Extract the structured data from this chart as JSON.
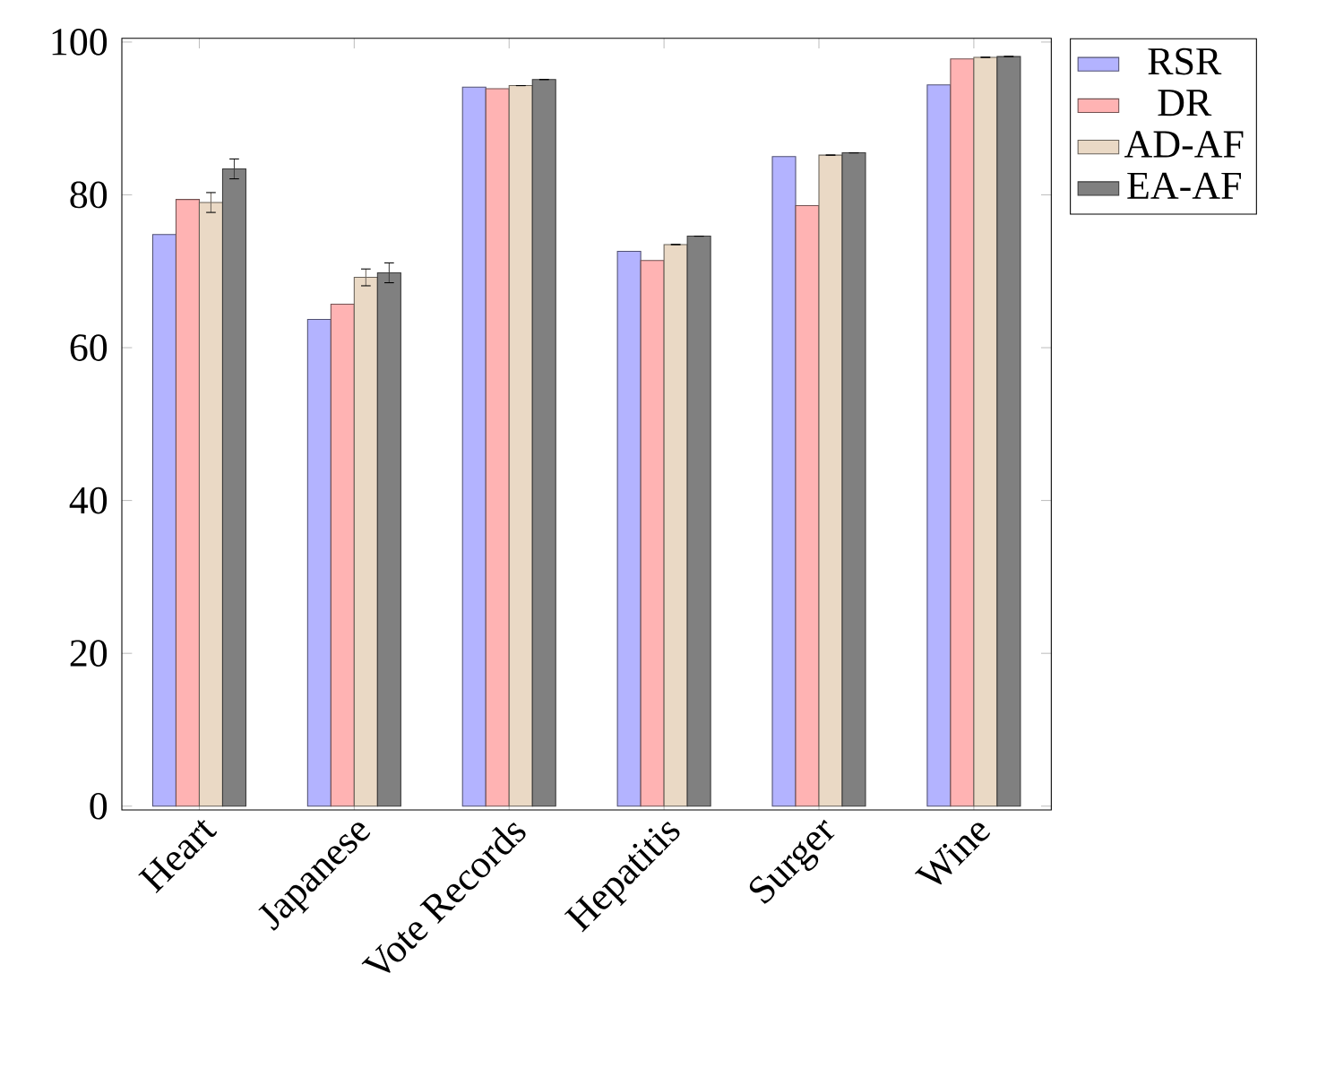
{
  "chart_data": {
    "type": "bar",
    "categories": [
      "Heart",
      "Japanese",
      "Vote Records",
      "Hepatitis",
      "Surger",
      "Wine"
    ],
    "series": [
      {
        "name": "RSR",
        "color": "#b3b3ff",
        "values": [
          74.8,
          63.7,
          94.1,
          72.6,
          85.0,
          94.4
        ]
      },
      {
        "name": "DR",
        "color": "#ffb3b3",
        "values": [
          79.4,
          65.7,
          93.9,
          71.4,
          78.6,
          97.8
        ]
      },
      {
        "name": "AD-AF",
        "color": "#ead9c5",
        "values": [
          79.0,
          69.2,
          94.3,
          73.5,
          85.2,
          98.0
        ],
        "errors": [
          1.3,
          1.1,
          null,
          null,
          null,
          null
        ]
      },
      {
        "name": "EA-AF",
        "color": "#808080",
        "values": [
          83.4,
          69.8,
          95.1,
          74.6,
          85.5,
          98.1
        ],
        "errors": [
          1.3,
          1.3,
          null,
          null,
          null,
          null
        ]
      }
    ],
    "ylim": [
      -0.5,
      100.5
    ],
    "yticks": [
      0,
      20,
      40,
      60,
      80,
      100
    ],
    "legend": "top right",
    "grid": false
  }
}
